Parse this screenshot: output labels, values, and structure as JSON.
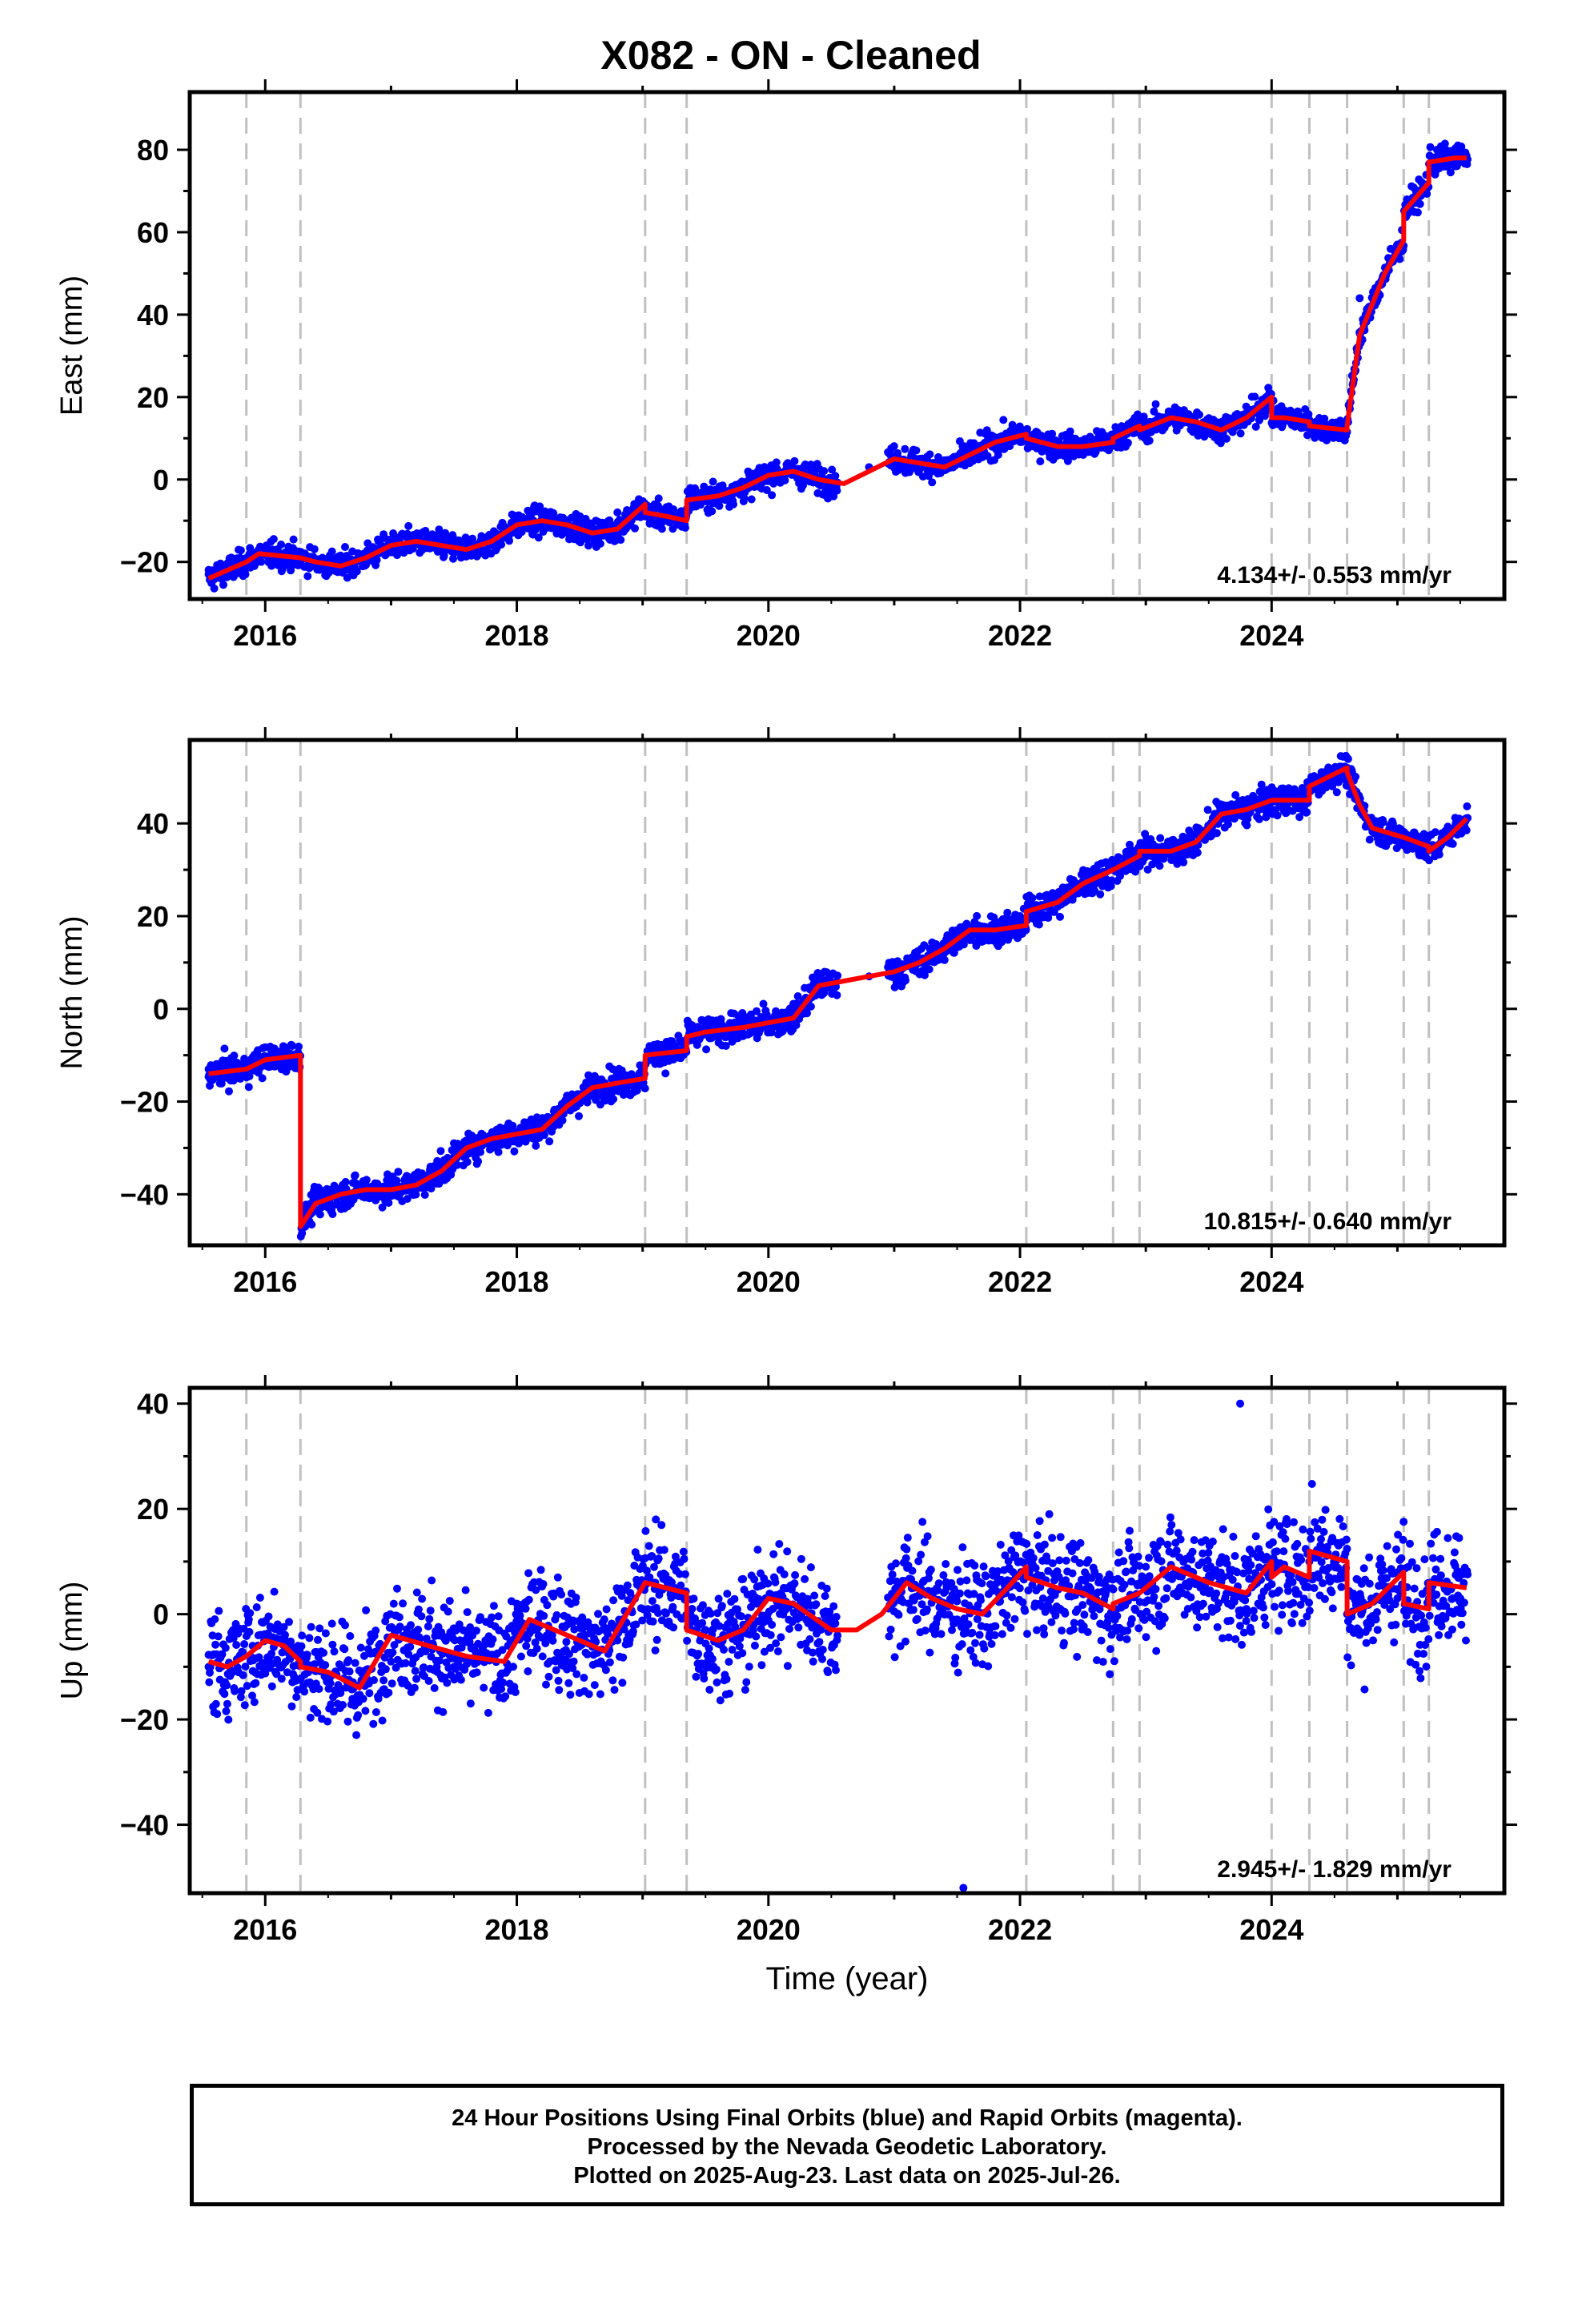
{
  "title": "X082  - ON - Cleaned",
  "xlabel": "Time (year)",
  "caption": [
    "24 Hour Positions Using Final Orbits (blue) and Rapid Orbits (magenta).",
    "Processed by the Nevada Geodetic Laboratory.",
    "Plotted on 2025-Aug-23. Last data on 2025-Jul-26."
  ],
  "colors": {
    "points": "#0000ff",
    "model": "#ff0000",
    "steps": "#c0c0c0",
    "frame": "#000000"
  },
  "step_epochs": [
    2015.85,
    2016.28,
    2019.02,
    2019.35,
    2022.05,
    2022.74,
    2022.95,
    2024.0,
    2024.3,
    2024.6,
    2025.05,
    2025.25
  ],
  "chart_data": [
    {
      "type": "scatter",
      "ylabel": "East (mm)",
      "rate": "4.134+/- 0.553 mm/yr",
      "xlim": [
        2015.4,
        2025.85
      ],
      "ylim": [
        -29,
        94
      ],
      "xticks": [
        2016,
        2018,
        2020,
        2022,
        2024
      ],
      "yticks": [
        -20,
        0,
        20,
        40,
        60,
        80
      ],
      "grid": false,
      "series": [
        {
          "style": "points",
          "x": [
            2015.55,
            2015.8,
            2016.1,
            2016.5,
            2016.9,
            2017.2,
            2017.6,
            2018.0,
            2018.4,
            2018.8,
            2019.2,
            2019.6,
            2020.0,
            2020.4,
            2020.8,
            2021.2,
            2021.6,
            2022.0,
            2022.4,
            2022.8,
            2023.2,
            2023.6,
            2023.95,
            2024.2,
            2024.55,
            2024.7,
            2025.0,
            2025.3,
            2025.55
          ],
          "y": [
            -23,
            -19,
            -19,
            -20,
            -15,
            -15,
            -15,
            -10,
            -12,
            -8,
            -7,
            -4,
            1,
            0,
            3,
            5,
            4,
            10,
            8,
            11,
            15,
            13,
            19,
            14,
            11,
            44,
            57,
            74,
            78
          ]
        },
        {
          "style": "model",
          "x": [
            2015.55,
            2015.7,
            2015.85,
            2015.95,
            2016.28,
            2016.4,
            2016.6,
            2016.8,
            2017.0,
            2017.2,
            2017.4,
            2017.6,
            2017.8,
            2018.0,
            2018.2,
            2018.4,
            2018.6,
            2018.8,
            2019.02,
            2019.02,
            2019.2,
            2019.35,
            2019.35,
            2019.6,
            2019.8,
            2020.0,
            2020.2,
            2020.4,
            2020.6,
            2020.8,
            2021.0,
            2021.2,
            2021.4,
            2021.6,
            2021.8,
            2022.05,
            2022.05,
            2022.3,
            2022.5,
            2022.74,
            2022.74,
            2022.95,
            2022.95,
            2023.2,
            2023.4,
            2023.6,
            2023.8,
            2024.0,
            2024.0,
            2024.1,
            2024.3,
            2024.3,
            2024.6,
            2024.6,
            2024.7,
            2024.9,
            2025.05,
            2025.05,
            2025.25,
            2025.25,
            2025.45,
            2025.55
          ],
          "y": [
            -24,
            -22,
            -20,
            -18,
            -19,
            -20,
            -21,
            -19,
            -16,
            -15,
            -16,
            -17,
            -15,
            -11,
            -10,
            -11,
            -13,
            -12,
            -6,
            -8,
            -9,
            -10,
            -5,
            -4,
            -2,
            1,
            2,
            0,
            -1,
            2,
            5,
            4,
            3,
            6,
            9,
            11,
            10,
            8,
            8,
            9,
            10,
            13,
            12,
            15,
            14,
            12,
            15,
            20,
            15,
            15,
            14,
            13,
            12,
            13,
            35,
            50,
            58,
            65,
            72,
            77,
            78,
            78
          ]
        }
      ]
    },
    {
      "type": "scatter",
      "ylabel": "North (mm)",
      "rate": "10.815+/- 0.640 mm/yr",
      "xlim": [
        2015.4,
        2025.85
      ],
      "ylim": [
        -51,
        58
      ],
      "xticks": [
        2016,
        2018,
        2020,
        2022,
        2024
      ],
      "yticks": [
        -40,
        -20,
        0,
        20,
        40
      ],
      "grid": false,
      "series": [
        {
          "style": "points",
          "x": [
            2015.55,
            2015.8,
            2016.1,
            2016.3,
            2016.5,
            2016.9,
            2017.2,
            2017.5,
            2017.8,
            2018.1,
            2018.4,
            2018.7,
            2019.0,
            2019.3,
            2019.6,
            2020.0,
            2020.4,
            2020.8,
            2021.2,
            2021.6,
            2022.0,
            2022.4,
            2022.8,
            2023.2,
            2023.6,
            2024.0,
            2024.4,
            2024.6,
            2024.8,
            2025.2,
            2025.55
          ],
          "y": [
            -13,
            -12,
            -10,
            -44,
            -39,
            -39,
            -37,
            -29,
            -27,
            -26,
            -20,
            -16,
            -14,
            -9,
            -6,
            -3,
            5,
            7,
            10,
            17,
            20,
            28,
            31,
            36,
            43,
            45,
            47,
            52,
            39,
            36,
            41
          ]
        },
        {
          "style": "model",
          "x": [
            2015.55,
            2015.85,
            2016.0,
            2016.28,
            2016.28,
            2016.4,
            2016.6,
            2016.8,
            2017.0,
            2017.2,
            2017.4,
            2017.6,
            2017.8,
            2018.0,
            2018.2,
            2018.4,
            2018.6,
            2018.8,
            2019.02,
            2019.02,
            2019.35,
            2019.35,
            2019.5,
            2019.8,
            2020.0,
            2020.2,
            2020.4,
            2020.6,
            2020.8,
            2021.0,
            2021.2,
            2021.4,
            2021.6,
            2021.8,
            2022.05,
            2022.05,
            2022.3,
            2022.5,
            2022.74,
            2022.74,
            2022.95,
            2022.95,
            2023.2,
            2023.4,
            2023.6,
            2023.8,
            2024.0,
            2024.0,
            2024.3,
            2024.3,
            2024.6,
            2024.6,
            2024.7,
            2024.8,
            2025.05,
            2025.05,
            2025.25,
            2025.25,
            2025.4,
            2025.55
          ],
          "y": [
            -14,
            -13,
            -11,
            -10,
            -47,
            -42,
            -40,
            -39,
            -39,
            -38,
            -35,
            -30,
            -28,
            -27,
            -26,
            -21,
            -17,
            -16,
            -15,
            -10,
            -9,
            -6,
            -5,
            -4,
            -3,
            -2,
            5,
            6,
            7,
            8,
            10,
            13,
            17,
            17,
            18,
            21,
            23,
            27,
            30,
            30,
            33,
            34,
            34,
            36,
            42,
            43,
            45,
            45,
            45,
            48,
            52,
            51,
            44,
            39,
            37,
            37,
            35,
            34,
            37,
            41
          ]
        }
      ]
    },
    {
      "type": "scatter",
      "ylabel": "Up (mm)",
      "rate": "2.945+/- 1.829 mm/yr",
      "xlim": [
        2015.4,
        2025.85
      ],
      "ylim": [
        -53,
        43
      ],
      "xticks": [
        2016,
        2018,
        2020,
        2022,
        2024
      ],
      "yticks": [
        -40,
        -20,
        0,
        20,
        40
      ],
      "grid": false,
      "series": [
        {
          "style": "points",
          "x": [
            2015.55,
            2015.9,
            2016.3,
            2016.7,
            2017.0,
            2017.5,
            2018.0,
            2018.4,
            2018.8,
            2019.1,
            2019.5,
            2019.8,
            2020.1,
            2020.5,
            2021.0,
            2021.5,
            2021.8,
            2022.1,
            2022.6,
            2023.0,
            2023.5,
            2023.8,
            2024.3,
            2024.6,
            2025.0,
            2025.5,
            2023.75,
            2021.55
          ],
          "y": [
            -10,
            -6,
            -8,
            -14,
            -9,
            -10,
            2,
            -2,
            -5,
            6,
            -3,
            -2,
            4,
            -1,
            3,
            -1,
            -4,
            9,
            3,
            9,
            4,
            1,
            10,
            0,
            3,
            3,
            40,
            -52
          ]
        },
        {
          "style": "model",
          "x": [
            2015.55,
            2015.7,
            2015.85,
            2016.0,
            2016.15,
            2016.28,
            2016.28,
            2016.5,
            2016.75,
            2017.0,
            2017.3,
            2017.6,
            2017.9,
            2018.1,
            2018.4,
            2018.7,
            2019.02,
            2019.02,
            2019.35,
            2019.35,
            2019.6,
            2019.8,
            2020.0,
            2020.2,
            2020.5,
            2020.7,
            2020.9,
            2021.1,
            2021.3,
            2021.5,
            2021.7,
            2021.9,
            2022.05,
            2022.05,
            2022.3,
            2022.5,
            2022.74,
            2022.74,
            2022.95,
            2022.95,
            2023.2,
            2023.5,
            2023.8,
            2024.0,
            2024.0,
            2024.1,
            2024.3,
            2024.3,
            2024.6,
            2024.6,
            2024.8,
            2025.05,
            2025.05,
            2025.25,
            2025.25,
            2025.55
          ],
          "y": [
            -9,
            -10,
            -8,
            -5,
            -6,
            -9,
            -10,
            -11,
            -14,
            -4,
            -6,
            -8,
            -9,
            -1,
            -4,
            -7,
            6,
            6,
            4,
            -3,
            -5,
            -3,
            3,
            2,
            -3,
            -3,
            0,
            6,
            3,
            1,
            0,
            5,
            9,
            7,
            5,
            4,
            1,
            2,
            4,
            4,
            9,
            6,
            4,
            10,
            7,
            9,
            7,
            12,
            10,
            0,
            2,
            8,
            2,
            1,
            6,
            5
          ]
        }
      ]
    }
  ]
}
